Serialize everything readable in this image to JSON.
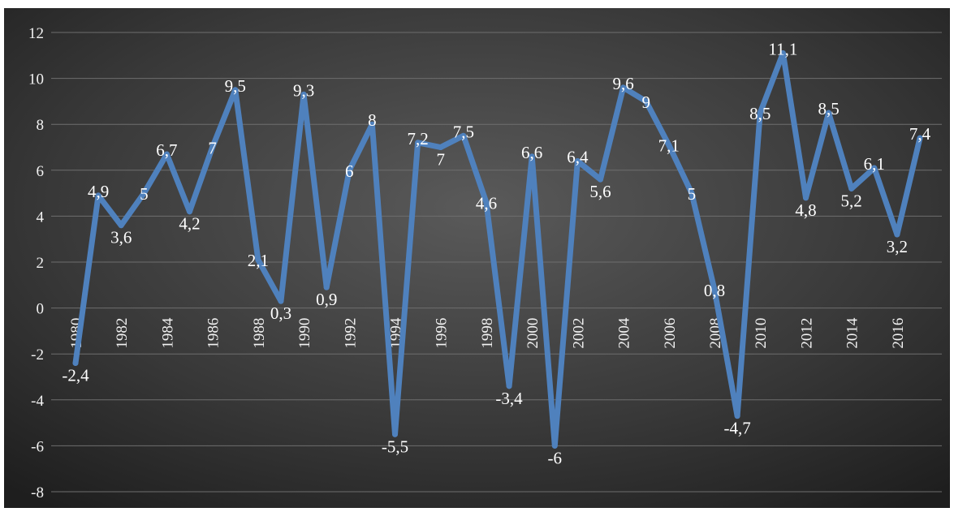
{
  "chart_data": {
    "type": "line",
    "title": "",
    "xlabel": "",
    "ylabel": "",
    "x": [
      1980,
      1981,
      1982,
      1983,
      1984,
      1985,
      1986,
      1987,
      1988,
      1989,
      1990,
      1991,
      1992,
      1993,
      1994,
      1995,
      1996,
      1997,
      1998,
      1999,
      2000,
      2001,
      2002,
      2003,
      2004,
      2005,
      2006,
      2007,
      2008,
      2009,
      2010,
      2011,
      2012,
      2013,
      2014,
      2015,
      2016,
      2017
    ],
    "x_tick_labels": [
      "1980",
      "1982",
      "1984",
      "1986",
      "1988",
      "1990",
      "1992",
      "1994",
      "1996",
      "1998",
      "2000",
      "2002",
      "2004",
      "2006",
      "2008",
      "2010",
      "2012",
      "2014",
      "2016"
    ],
    "series": [
      {
        "values": [
          -2.4,
          4.9,
          3.6,
          5,
          6.7,
          4.2,
          7,
          9.5,
          2.1,
          0.3,
          9.3,
          0.9,
          6,
          8,
          -5.5,
          7.2,
          7,
          7.5,
          4.6,
          -3.4,
          6.6,
          -6,
          6.4,
          5.6,
          9.6,
          9,
          7.1,
          5,
          0.8,
          -4.7,
          8.5,
          11.1,
          4.8,
          8.5,
          5.2,
          6.1,
          3.2,
          7.4
        ],
        "data_labels": [
          "-2,4",
          "4,9",
          "3,6",
          "5",
          "6,7",
          "4,2",
          "7",
          "9,5",
          "2,1",
          "0,3",
          "9,3",
          "0,9",
          "6",
          "8",
          "-5,5",
          "7,2",
          "7",
          "7,5",
          "4,6",
          "-3,4",
          "6,6",
          "-6",
          "6,4",
          "5,6",
          "9,6",
          "9",
          "7,1",
          "5",
          "0,8",
          "-4,7",
          "8,5",
          "11,1",
          "4,8",
          "8,5",
          "5,2",
          "6,1",
          "3,2",
          "7,4"
        ],
        "color": "#4f81bd"
      }
    ],
    "y_ticks": [
      "12",
      "10",
      "8",
      "6",
      "4",
      "2",
      "0",
      "-2",
      "-4",
      "-6",
      "-8"
    ],
    "ylim": [
      -8,
      12
    ],
    "grid": true,
    "legend": "none",
    "background_color": "#3a3a3a",
    "text_color": "#f2f2f2"
  }
}
